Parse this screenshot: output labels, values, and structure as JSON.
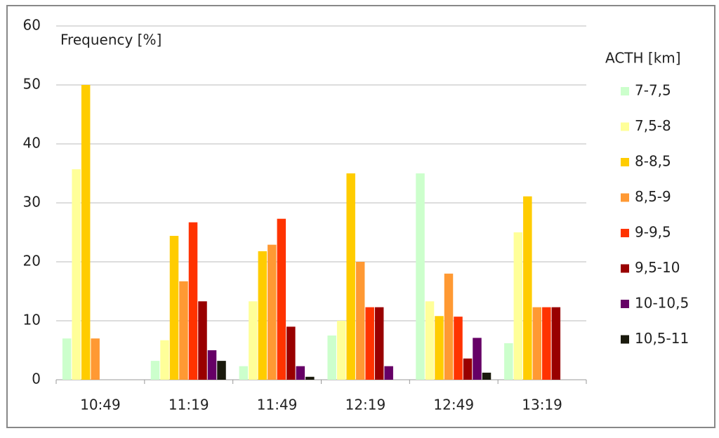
{
  "chart_data": {
    "type": "bar",
    "ylabel": "Frequency [%]",
    "legend_title": "ACTH [km]",
    "categories": [
      "10:49",
      "11:19",
      "11:49",
      "12:19",
      "12:49",
      "13:19"
    ],
    "series": [
      {
        "name": "7-7,5",
        "color": "#ccffcc",
        "values": [
          7,
          3.2,
          2.3,
          7.5,
          35,
          6.2
        ]
      },
      {
        "name": "7,5-8",
        "color": "#ffff99",
        "values": [
          35.7,
          6.7,
          13.3,
          10,
          13.3,
          25
        ]
      },
      {
        "name": "8-8,5",
        "color": "#ffcc00",
        "values": [
          50,
          24.4,
          21.8,
          35,
          10.8,
          31.1
        ]
      },
      {
        "name": "8,5-9",
        "color": "#ff9933",
        "values": [
          7,
          16.7,
          22.9,
          20,
          18,
          12.3
        ]
      },
      {
        "name": "9-9,5",
        "color": "#ff3300",
        "values": [
          0,
          26.7,
          27.3,
          12.3,
          10.7,
          12.3
        ]
      },
      {
        "name": "9,5-10",
        "color": "#990000",
        "values": [
          0,
          13.3,
          9,
          12.3,
          3.6,
          12.3
        ]
      },
      {
        "name": "10-10,5",
        "color": "#660066",
        "values": [
          0,
          5,
          2.3,
          2.3,
          7.1,
          0
        ]
      },
      {
        "name": "10,5-11",
        "color": "#1a1a0d",
        "values": [
          0,
          3.2,
          0.5,
          0,
          1.2,
          0
        ]
      }
    ],
    "ylim": [
      0,
      60
    ],
    "yticks": [
      0,
      10,
      20,
      30,
      40,
      50,
      60
    ],
    "grid": true,
    "legend": "right"
  }
}
